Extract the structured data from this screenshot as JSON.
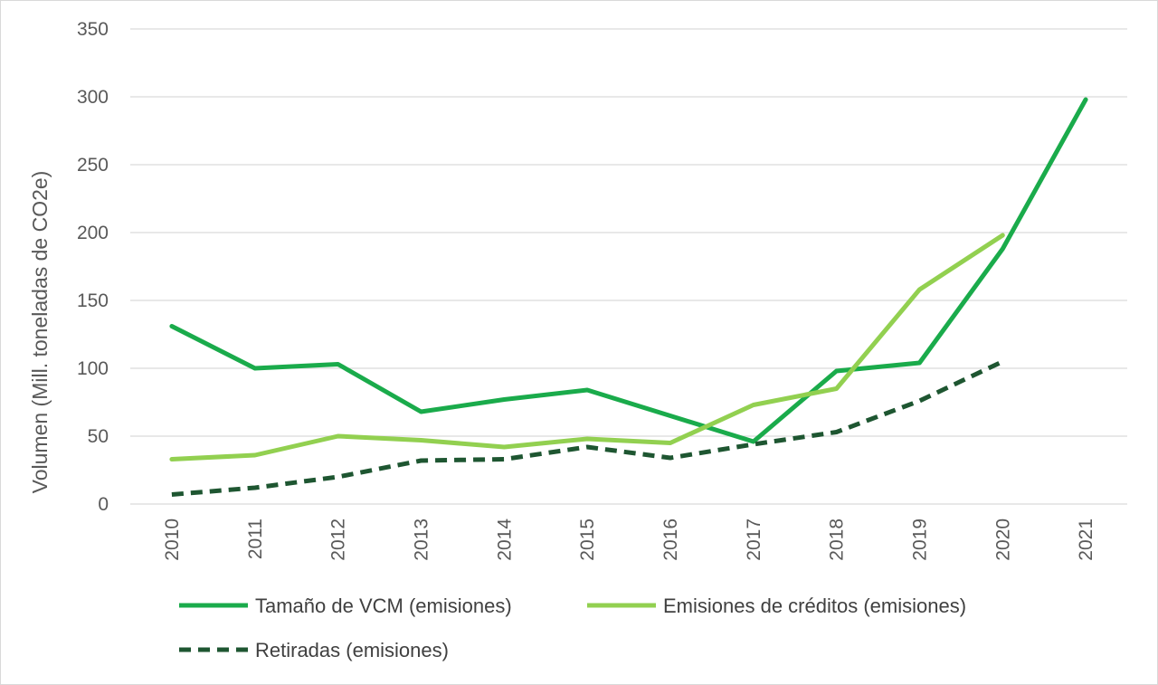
{
  "chart_data": {
    "type": "line",
    "categories": [
      "2010",
      "2011",
      "2012",
      "2013",
      "2014",
      "2015",
      "2016",
      "2017",
      "2018",
      "2019",
      "2020",
      "2021"
    ],
    "ylabel": "Volumen (Mill. toneladas de CO2e)",
    "xlabel": "",
    "ylim": [
      0,
      350
    ],
    "yticks": [
      0,
      50,
      100,
      150,
      200,
      250,
      300,
      350
    ],
    "grid": "horizontal",
    "legend_position": "bottom",
    "series": [
      {
        "name": "Tamaño de VCM (emisiones)",
        "color": "#1aab4b",
        "dash": "solid",
        "values": [
          131,
          100,
          103,
          68,
          77,
          84,
          65,
          46,
          98,
          104,
          188,
          298
        ]
      },
      {
        "name": "Emisiones de créditos (emisiones)",
        "color": "#92d050",
        "dash": "solid",
        "values": [
          33,
          36,
          50,
          47,
          42,
          48,
          45,
          73,
          85,
          158,
          198,
          null
        ]
      },
      {
        "name": "Retiradas (emisiones)",
        "color": "#1e5631",
        "dash": "dashed",
        "values": [
          7,
          12,
          20,
          32,
          33,
          42,
          34,
          44,
          53,
          76,
          105,
          null
        ]
      }
    ]
  }
}
